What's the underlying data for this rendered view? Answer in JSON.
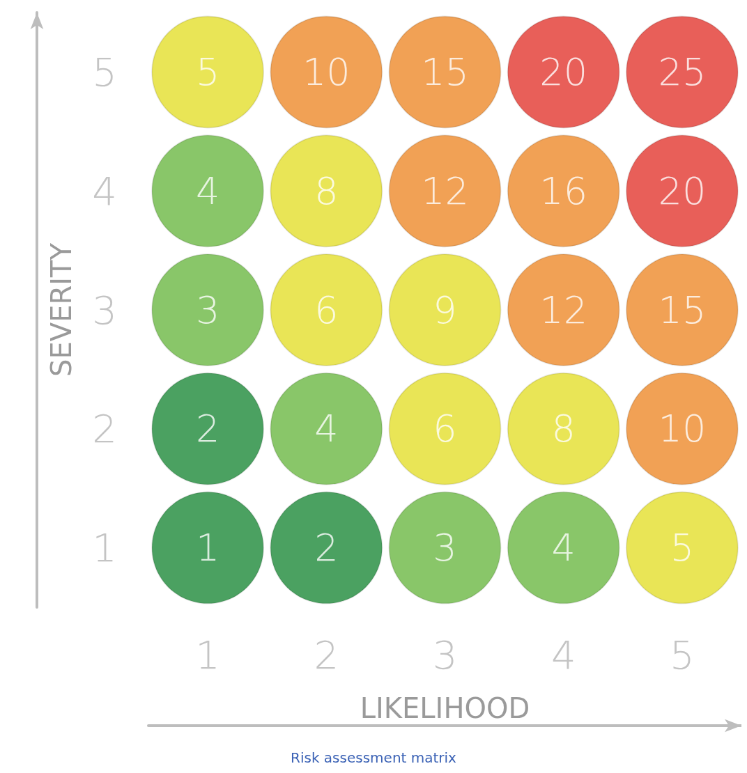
{
  "chart_data": {
    "type": "heatmap",
    "xlabel": "LIKELIHOOD",
    "ylabel": "SEVERITY",
    "categories": [
      "1",
      "2",
      "3",
      "4",
      "5"
    ],
    "y_categories": [
      "5",
      "4",
      "3",
      "2",
      "1"
    ],
    "cells": [
      [
        5,
        10,
        15,
        20,
        25
      ],
      [
        4,
        8,
        12,
        16,
        20
      ],
      [
        3,
        6,
        9,
        12,
        15
      ],
      [
        2,
        4,
        6,
        8,
        10
      ],
      [
        1,
        2,
        3,
        4,
        5
      ]
    ],
    "colors": [
      [
        "#e4df2c",
        "#ee8a2a",
        "#ee8a2a",
        "#e2372f",
        "#e2372f"
      ],
      [
        "#6cb843",
        "#e4df2c",
        "#ee8a2a",
        "#ee8a2a",
        "#e2372f"
      ],
      [
        "#6cb843",
        "#e4df2c",
        "#e4df2c",
        "#ee8a2a",
        "#ee8a2a"
      ],
      [
        "#1e8a3a",
        "#6cb843",
        "#e4df2c",
        "#e4df2c",
        "#ee8a2a"
      ],
      [
        "#1e8a3a",
        "#1e8a3a",
        "#6cb843",
        "#6cb843",
        "#e4df2c"
      ]
    ],
    "data_labels": true,
    "annotations": [
      "Risk assessment matrix"
    ]
  }
}
